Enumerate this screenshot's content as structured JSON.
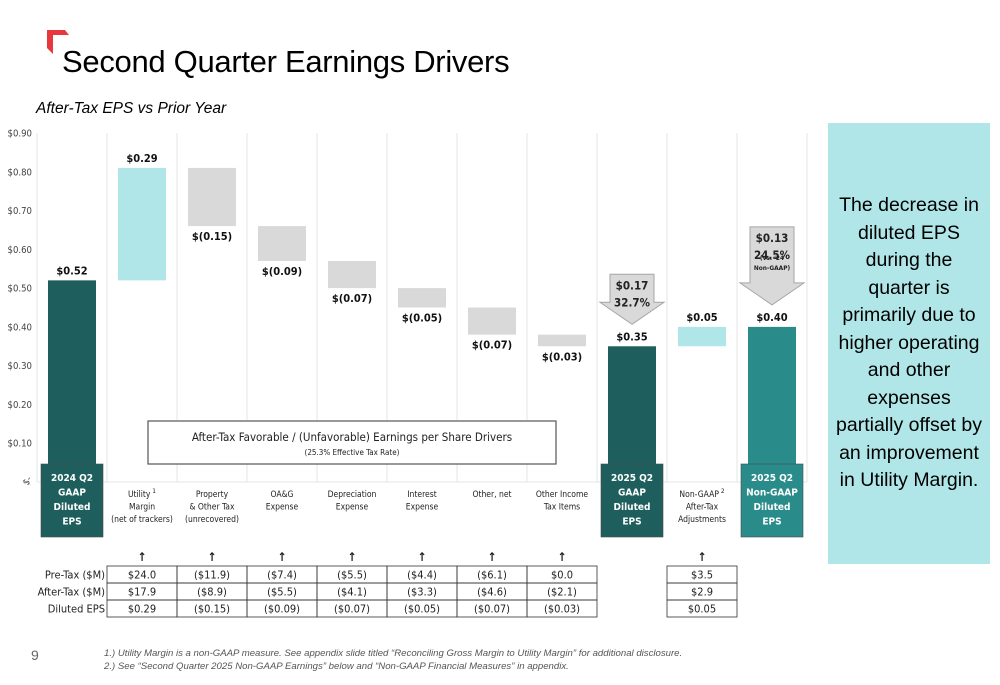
{
  "slide": {
    "title": "Second Quarter Earnings Drivers",
    "subtitle": "After-Tax EPS vs Prior Year",
    "page_number": "9",
    "accent_color": "#e8383d",
    "side_note": "The decrease in diluted EPS during the quarter is primarily due to higher operating and other expenses partially offset by an improvement in Utility Margin.",
    "footnotes": [
      "1.) Utility Margin is a non-GAAP measure. See appendix slide titled “Reconciling Gross Margin to Utility Margin” for additional disclosure.",
      "2.) See “Second Quarter 2025 Non-GAAP Earnings” below and “Non-GAAP Financial Measures” in appendix."
    ]
  },
  "chart_data": {
    "type": "bar",
    "subtype": "waterfall",
    "title": "After-Tax EPS vs Prior Year",
    "xlabel": "",
    "ylabel": "",
    "ylim": [
      0,
      0.9
    ],
    "yticks": [
      0,
      0.1,
      0.2,
      0.3,
      0.4,
      0.5,
      0.6,
      0.7,
      0.8,
      0.9
    ],
    "ytick_labels": [
      "$-",
      "$0.10",
      "$0.20",
      "$0.30",
      "$0.40",
      "$0.50",
      "$0.60",
      "$0.70",
      "$0.80",
      "$0.90"
    ],
    "grid": "vertical separators",
    "colors": {
      "total_gaap": "#1e5f5e",
      "total_nongaap": "#2a8b8b",
      "positive": "#b0e6e8",
      "negative": "#d9d9d9",
      "arrow": "#d9d9d9"
    },
    "bars": [
      {
        "category": "2024 Q2 GAAP Diluted EPS",
        "category_lines": [
          "2024 Q2",
          "GAAP",
          "Diluted",
          "EPS"
        ],
        "kind": "total_gaap",
        "start": 0,
        "end": 0.52,
        "label": "$0.52"
      },
      {
        "category": "Utility Margin (net of trackers)",
        "category_lines": [
          "Utility",
          "Margin",
          "(net of trackers)"
        ],
        "superscript": "1",
        "kind": "positive",
        "start": 0.52,
        "end": 0.81,
        "label": "$0.29"
      },
      {
        "category": "Property & Other Tax (unrecovered)",
        "category_lines": [
          "Property",
          "& Other Tax",
          "(unrecovered)"
        ],
        "kind": "negative",
        "start": 0.81,
        "end": 0.66,
        "label": "$(0.15)"
      },
      {
        "category": "OA&G Expense",
        "category_lines": [
          "OA&G",
          "Expense"
        ],
        "kind": "negative",
        "start": 0.66,
        "end": 0.57,
        "label": "$(0.09)"
      },
      {
        "category": "Depreciation Expense",
        "category_lines": [
          "Depreciation",
          "Expense"
        ],
        "kind": "negative",
        "start": 0.57,
        "end": 0.5,
        "label": "$(0.07)"
      },
      {
        "category": "Interest Expense",
        "category_lines": [
          "Interest",
          "Expense"
        ],
        "kind": "negative",
        "start": 0.5,
        "end": 0.45,
        "label": "$(0.05)"
      },
      {
        "category": "Other, net",
        "category_lines": [
          "Other, net"
        ],
        "kind": "negative",
        "start": 0.45,
        "end": 0.38,
        "label": "$(0.07)"
      },
      {
        "category": "Other Income Tax Items",
        "category_lines": [
          "Other Income",
          "Tax Items"
        ],
        "kind": "negative",
        "start": 0.38,
        "end": 0.35,
        "label": "$(0.03)"
      },
      {
        "category": "2025 Q2 GAAP Diluted EPS",
        "category_lines": [
          "2025 Q2",
          "GAAP",
          "Diluted",
          "EPS"
        ],
        "kind": "total_gaap",
        "start": 0,
        "end": 0.35,
        "label": "$0.35"
      },
      {
        "category": "Non-GAAP After-Tax Adjustments",
        "category_lines": [
          "Non-GAAP",
          "After-Tax",
          "Adjustments"
        ],
        "superscript": "2",
        "kind": "positive",
        "start": 0.35,
        "end": 0.4,
        "label": "$0.05"
      },
      {
        "category": "2025 Q2 Non-GAAP Diluted EPS",
        "category_lines": [
          "2025 Q2",
          "Non-GAAP",
          "Diluted",
          "EPS"
        ],
        "kind": "total_nongaap",
        "start": 0,
        "end": 0.4,
        "label": "$0.40"
      }
    ],
    "annotations": [
      {
        "target": "2025 Q2 GAAP Diluted EPS",
        "type": "down-arrow",
        "lines": [
          "$0.17",
          "32.7%"
        ]
      },
      {
        "target": "2025 Q2 Non-GAAP Diluted EPS",
        "type": "down-arrow",
        "lines": [
          "$0.13",
          "24.5%",
          "(vs. '24",
          "Non-GAAP)"
        ]
      }
    ],
    "drivers_box": {
      "title": "After-Tax Favorable / (Unfavorable) Earnings per Share Drivers",
      "subtitle": "(25.3% Effective Tax Rate)"
    }
  },
  "driver_table": {
    "arrow_glyph": "↑",
    "row_labels": [
      "Pre-Tax ($M)",
      "After-Tax ($M)",
      "Diluted EPS"
    ],
    "columns": [
      {
        "category": "Utility Margin",
        "values": [
          "$24.0",
          "$17.9",
          "$0.29"
        ]
      },
      {
        "category": "Property & Other Tax",
        "values": [
          "($11.9)",
          "($8.9)",
          "($0.15)"
        ]
      },
      {
        "category": "OA&G Expense",
        "values": [
          "($7.4)",
          "($5.5)",
          "($0.09)"
        ]
      },
      {
        "category": "Depreciation Expense",
        "values": [
          "($5.5)",
          "($4.1)",
          "($0.07)"
        ]
      },
      {
        "category": "Interest Expense",
        "values": [
          "($4.4)",
          "($3.3)",
          "($0.05)"
        ]
      },
      {
        "category": "Other, net",
        "values": [
          "($6.1)",
          "($4.6)",
          "($0.07)"
        ]
      },
      {
        "category": "Other Income Tax Items",
        "values": [
          "$0.0",
          "($2.1)",
          "($0.03)"
        ]
      }
    ],
    "adjustment_column": {
      "category": "Non-GAAP After-Tax Adjustments",
      "values": [
        "$3.5",
        "$2.9",
        "$0.05"
      ]
    }
  }
}
